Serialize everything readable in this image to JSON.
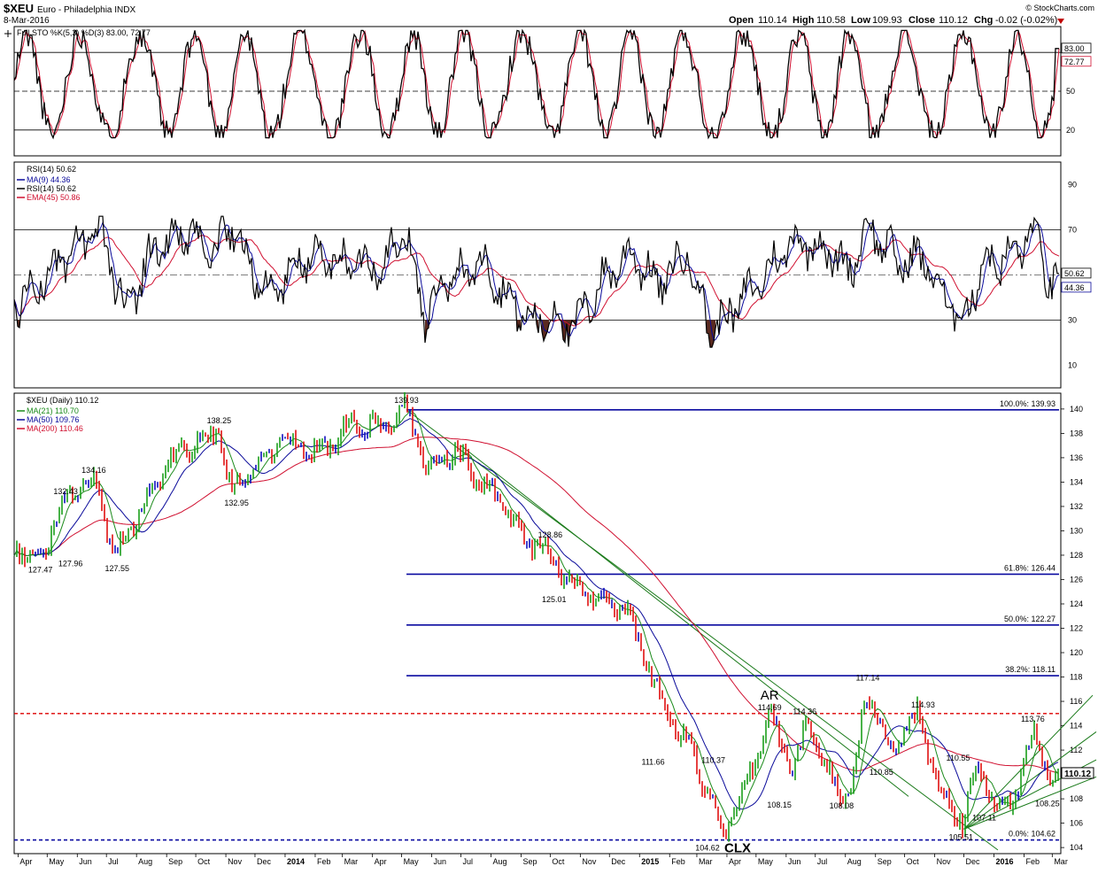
{
  "header": {
    "symbol": "$XEU",
    "name": "Euro - Philadelphia INDX",
    "date": "8-Mar-2016",
    "open_label": "Open",
    "open": "110.14",
    "high_label": "High",
    "high": "110.58",
    "low_label": "Low",
    "low": "109.93",
    "close_label": "Close",
    "close": "110.12",
    "chg_label": "Chg",
    "chg": "-0.02 (-0.02%)",
    "brand": "© StockCharts.com"
  },
  "colors": {
    "price_up": "#1b9e1b",
    "price_down": "#e01010",
    "price_blue": "#1010c0",
    "ma21": "#1a8a1a",
    "ma50": "#0a0a9a",
    "ma200": "#d01030",
    "fib": "#0a0aa0",
    "resistance": "#dd0000",
    "trend": "#1a7a1a",
    "rsi_fill": "#5a2a20",
    "grid": "#000000"
  },
  "chart_data": [
    {
      "type": "line",
      "panel": "sto",
      "legend": "Full STO %K(5,3) %D(3) 83.00, 72.77",
      "levels": [
        20,
        50,
        80
      ],
      "ylim": [
        0,
        100
      ],
      "last_k": "83.00",
      "last_d": "72.77",
      "scale_labels": [
        "50",
        "20"
      ],
      "style": "oscillating ~19 cycles between 15 and 95 over 2013-04 to 2016-03",
      "series": [
        {
          "name": "%K",
          "values": []
        },
        {
          "name": "%D",
          "values": []
        }
      ]
    },
    {
      "type": "line",
      "panel": "rsi",
      "legend": [
        "RSI(14) 50.62",
        "MA(9) 44.36",
        "RSI(14) 50.62",
        "EMA(45) 50.86"
      ],
      "ylim": [
        0,
        100
      ],
      "levels": [
        30,
        70
      ],
      "scale_labels": [
        "90",
        "70",
        "30",
        "10"
      ],
      "last_rsi": "50.62",
      "last_ma": "44.36",
      "x": [
        "2013-04-01",
        "2013-05-15",
        "2013-06-25",
        "2013-07-20",
        "2013-08-20",
        "2013-09-20",
        "2013-10-20",
        "2013-11-05",
        "2013-12-15",
        "2014-01-20",
        "2014-02-25",
        "2014-04-10",
        "2014-05-05",
        "2014-05-25",
        "2014-06-25",
        "2014-07-25",
        "2014-08-25",
        "2014-09-15",
        "2014-10-05",
        "2014-10-25",
        "2014-11-20",
        "2014-12-10",
        "2014-12-25",
        "2015-01-20",
        "2015-02-20",
        "2015-03-15",
        "2015-04-15",
        "2015-05-10",
        "2015-06-10",
        "2015-07-10",
        "2015-08-05",
        "2015-08-24",
        "2015-09-25",
        "2015-10-20",
        "2015-11-10",
        "2015-12-01",
        "2015-12-20",
        "2016-01-20",
        "2016-02-10",
        "2016-03-01",
        "2016-03-08"
      ],
      "series": [
        {
          "name": "RSI(14)",
          "values": [
            38,
            55,
            70,
            35,
            62,
            68,
            60,
            72,
            40,
            58,
            56,
            55,
            68,
            32,
            50,
            55,
            36,
            28,
            32,
            26,
            45,
            55,
            60,
            45,
            60,
            24,
            38,
            50,
            66,
            62,
            52,
            72,
            55,
            58,
            40,
            30,
            55,
            58,
            70,
            44,
            50.62
          ]
        }
      ]
    },
    {
      "type": "bar",
      "panel": "price",
      "title": "$XEU (Daily) 110.12",
      "legend": [
        "MA(21) 110.70",
        "MA(50) 109.76",
        "MA(200) 110.46"
      ],
      "ylim": [
        103.5,
        141.3
      ],
      "price_ticks": [
        "140",
        "138",
        "136",
        "134",
        "132",
        "130",
        "128",
        "126",
        "124",
        "122",
        "120",
        "118",
        "116",
        "114",
        "112",
        "110",
        "108",
        "106",
        "104"
      ],
      "x_ticks": [
        "Apr",
        "May",
        "Jun",
        "Jul",
        "Aug",
        "Sep",
        "Oct",
        "Nov",
        "Dec",
        "2014",
        "Feb",
        "Mar",
        "Apr",
        "May",
        "Jun",
        "Jul",
        "Aug",
        "Sep",
        "Oct",
        "Nov",
        "Dec",
        "2015",
        "Feb",
        "Mar",
        "Apr",
        "May",
        "Jun",
        "Jul",
        "Aug",
        "Sep",
        "Oct",
        "Nov",
        "Dec",
        "2016",
        "Feb",
        "Mar"
      ],
      "x": [
        "2013-04-01",
        "2013-04-25",
        "2013-05-15",
        "2013-06-19",
        "2013-07-10",
        "2013-08-15",
        "2013-09-05",
        "2013-10-25",
        "2013-11-07",
        "2013-12-27",
        "2014-02-05",
        "2014-03-13",
        "2014-04-10",
        "2014-05-06",
        "2014-05-25",
        "2014-06-25",
        "2014-07-20",
        "2014-08-10",
        "2014-09-05",
        "2014-09-20",
        "2014-10-15",
        "2014-10-30",
        "2014-11-25",
        "2014-12-15",
        "2015-01-05",
        "2015-01-23",
        "2015-02-10",
        "2015-02-20",
        "2015-03-13",
        "2015-03-26",
        "2015-04-13",
        "2015-05-15",
        "2015-06-08",
        "2015-06-24",
        "2015-07-20",
        "2015-08-05",
        "2015-08-24",
        "2015-09-15",
        "2015-10-15",
        "2015-11-05",
        "2015-11-30",
        "2015-12-15",
        "2016-01-05",
        "2016-01-25",
        "2016-02-11",
        "2016-02-29",
        "2016-03-08"
      ],
      "series": [
        {
          "name": "Close",
          "values": [
            128.5,
            127.47,
            132.43,
            134.16,
            128.0,
            133.0,
            136.0,
            138.25,
            132.95,
            137.5,
            136.5,
            139.0,
            138.2,
            139.93,
            135.5,
            136.5,
            134.0,
            132.5,
            129.0,
            128.86,
            126.5,
            125.01,
            124.5,
            124.0,
            120.0,
            116.0,
            113.5,
            112.5,
            108.5,
            104.62,
            107.5,
            114.69,
            110.0,
            114.36,
            109.0,
            108.08,
            117.14,
            112.0,
            114.93,
            109.0,
            106.0,
            110.55,
            107.11,
            108.5,
            113.76,
            109.5,
            110.12
          ]
        }
      ],
      "labels": [
        "127.47",
        "127.96",
        "132.43",
        "134.16",
        "127.55",
        "138.25",
        "132.95",
        "139.93",
        "128.86",
        "125.01",
        "111.66",
        "110.37",
        "104.62",
        "114.69",
        "108.15",
        "114.36",
        "108.08",
        "117.14",
        "110.85",
        "114.93",
        "110.55",
        "105.51",
        "107.11",
        "113.76",
        "108.25"
      ],
      "annotations": [
        "AR",
        "CLX"
      ],
      "fib_levels": [
        {
          "label": "100.0%: 139.93",
          "value": 139.93
        },
        {
          "label": "61.8%: 126.44",
          "value": 126.44
        },
        {
          "label": "50.0%: 122.27",
          "value": 122.27
        },
        {
          "label": "38.2%: 118.11",
          "value": 118.11
        },
        {
          "label": "0.0%: 104.62",
          "value": 104.62
        }
      ],
      "resistance": 115.0,
      "last_value": "110.12"
    }
  ]
}
